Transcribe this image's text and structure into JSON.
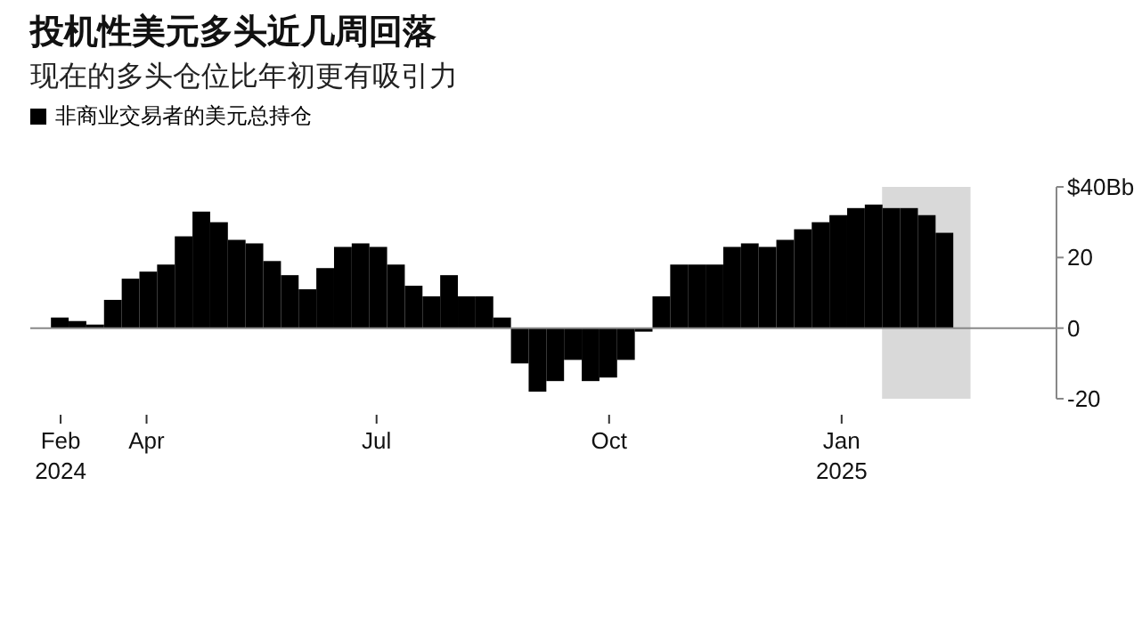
{
  "chart_data": {
    "type": "bar",
    "title": "投机性美元多头近几周回落",
    "subtitle": "现在的多头仓位比年初更有吸引力",
    "x": [
      "2024-02-27",
      "2024-03-05",
      "2024-03-12",
      "2024-03-19",
      "2024-03-26",
      "2024-04-02",
      "2024-04-09",
      "2024-04-16",
      "2024-04-23",
      "2024-04-30",
      "2024-05-07",
      "2024-05-14",
      "2024-05-21",
      "2024-05-28",
      "2024-06-04",
      "2024-06-11",
      "2024-06-18",
      "2024-06-25",
      "2024-07-02",
      "2024-07-09",
      "2024-07-16",
      "2024-07-23",
      "2024-07-30",
      "2024-08-06",
      "2024-08-13",
      "2024-08-20",
      "2024-08-27",
      "2024-09-03",
      "2024-09-10",
      "2024-09-17",
      "2024-09-24",
      "2024-10-01",
      "2024-10-08",
      "2024-10-15",
      "2024-10-22",
      "2024-10-29",
      "2024-11-05",
      "2024-11-12",
      "2024-11-19",
      "2024-11-26",
      "2024-12-03",
      "2024-12-10",
      "2024-12-17",
      "2024-12-24",
      "2024-12-31",
      "2025-01-07",
      "2025-01-14",
      "2025-01-21",
      "2025-01-28",
      "2025-02-04",
      "2025-02-11"
    ],
    "series": [
      {
        "name": "非商业交易者的美元总持仓",
        "color": "#000000",
        "values": [
          3,
          2,
          1,
          8,
          14,
          16,
          18,
          26,
          33,
          30,
          25,
          24,
          19,
          15,
          11,
          17,
          23,
          24,
          23,
          18,
          12,
          9,
          15,
          9,
          9,
          3,
          -10,
          -18,
          -15,
          -9,
          -15,
          -14,
          -9,
          -1,
          9,
          18,
          18,
          18,
          23,
          24,
          23,
          25,
          28,
          30,
          32,
          34,
          35,
          34,
          34,
          32,
          27
        ]
      }
    ],
    "xlim": [
      "2024-02-15",
      "2025-03-27"
    ],
    "xticks": [
      {
        "value": "2024-02-27",
        "label": "Feb\n2024"
      },
      {
        "value": "2024-04-01",
        "label": "Apr"
      },
      {
        "value": "2024-07-01",
        "label": "Jul"
      },
      {
        "value": "2024-10-01",
        "label": "Oct"
      },
      {
        "value": "2025-01-01",
        "label": "Jan\n2025"
      }
    ],
    "ylim": [
      -20,
      40
    ],
    "yticks": [
      -20,
      0,
      20,
      {
        "value": 40,
        "label": "$40Bb"
      }
    ],
    "bands": [
      {
        "axis": "x",
        "from": "2025-01-17",
        "to": "2025-02-21",
        "color": "#d9d9d9"
      }
    ],
    "ref_lines": [
      {
        "axis": "y",
        "value": 0,
        "color": "#888888"
      }
    ],
    "legend": "top left"
  }
}
